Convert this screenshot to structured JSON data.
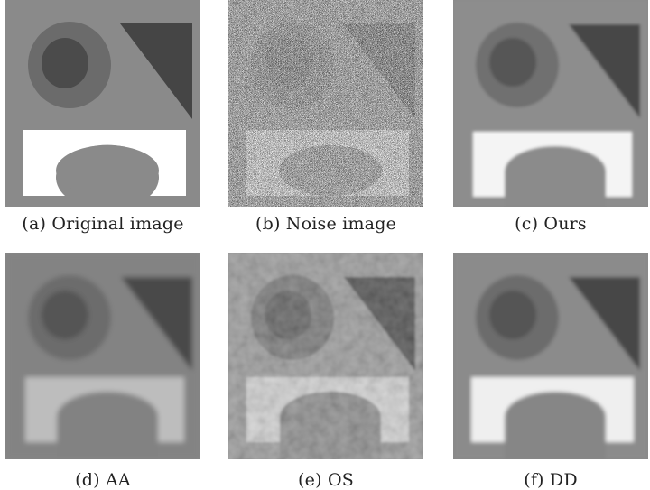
{
  "figure": {
    "panels": [
      {
        "id": "a",
        "caption": "(a) Original image",
        "style": "clean"
      },
      {
        "id": "b",
        "caption": "(b) Noise image",
        "style": "noisy"
      },
      {
        "id": "c",
        "caption": "(c) Ours",
        "style": "ours"
      },
      {
        "id": "d",
        "caption": "(d) AA",
        "style": "aa"
      },
      {
        "id": "e",
        "caption": "(e) OS",
        "style": "os"
      },
      {
        "id": "f",
        "caption": "(f) DD",
        "style": "dd"
      }
    ]
  }
}
